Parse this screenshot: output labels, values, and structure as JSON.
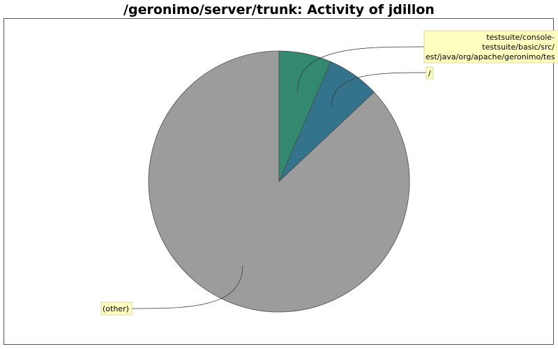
{
  "chart_data": {
    "type": "pie",
    "title": "/geronimo/server/trunk: Activity of jdillon",
    "slices": [
      {
        "label": "testsuite/console-testsuite/basic/src/test/java/org/apache/geronimo/testsuite/",
        "value": 6.5,
        "color": "#338870"
      },
      {
        "label": "/",
        "value": 6.5,
        "color": "#33748c"
      },
      {
        "label": "(other)",
        "value": 87.0,
        "color": "#9c9c9c"
      }
    ],
    "label_lines": {
      "slice0": [
        "testsuite/console-",
        "testsuite/basic/src/",
        "est/java/org/apache/geronimo/tes"
      ],
      "slice1": [
        "/"
      ],
      "slice2": [
        "(other)"
      ]
    },
    "legend": "none",
    "grid": false
  }
}
